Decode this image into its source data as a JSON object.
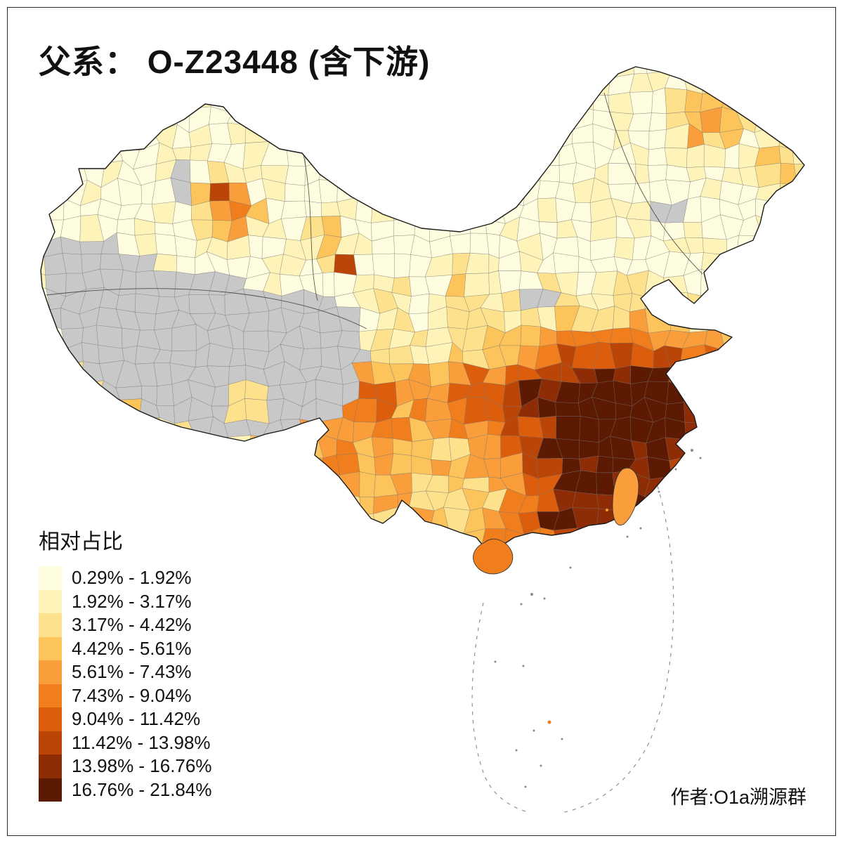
{
  "title": {
    "text": "父系： O-Z23448 (含下游)"
  },
  "legend": {
    "title": "相对占比",
    "classes": [
      {
        "label": "0.29% - 1.92%",
        "color": "#FFFDDF"
      },
      {
        "label": "1.92% - 3.17%",
        "color": "#FEF3B8"
      },
      {
        "label": "3.17% - 4.42%",
        "color": "#FDE18C"
      },
      {
        "label": "4.42% - 5.61%",
        "color": "#FCC45A"
      },
      {
        "label": "5.61% - 7.43%",
        "color": "#FA9E3B"
      },
      {
        "label": "7.43% - 9.04%",
        "color": "#F07E1D"
      },
      {
        "label": "9.04% - 11.42%",
        "color": "#DC5E0D"
      },
      {
        "label": "11.42% - 13.98%",
        "color": "#BB4507"
      },
      {
        "label": "13.98% - 16.76%",
        "color": "#8E2D05"
      },
      {
        "label": "16.76% - 21.84%",
        "color": "#5D1A03"
      }
    ]
  },
  "attribution": {
    "text": "作者:O1a溯源群"
  },
  "map": {
    "no_data_color": "#C8C8C8",
    "boundary_color": "#1A1A1A",
    "cell_border_color": "#6E6E6E",
    "sea_dash_color": "#888888",
    "island_dot_color": "#8A8A8A",
    "background": "#FFFFFF"
  }
}
